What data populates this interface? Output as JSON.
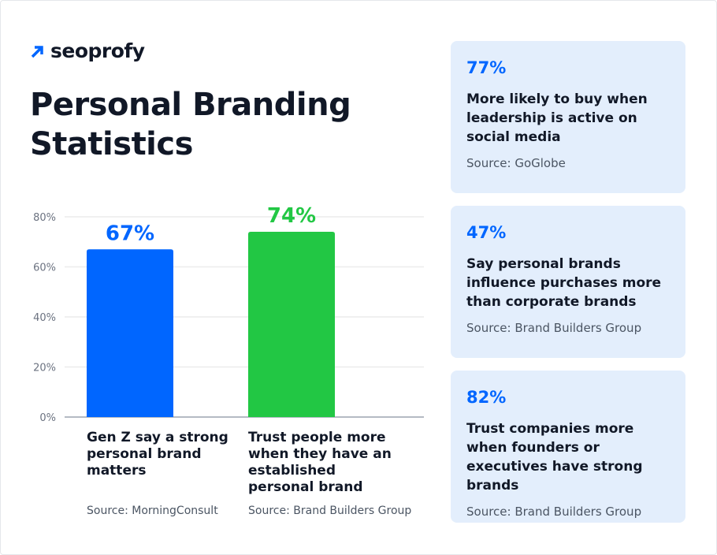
{
  "brand": {
    "name": "seoprofy",
    "accent": "#0066ff"
  },
  "title": "Personal Branding Statistics",
  "chart_data": {
    "type": "bar",
    "categories": [
      "Gen Z say a strong personal brand matters",
      "Trust people more when they have an established personal brand"
    ],
    "values": [
      67,
      74
    ],
    "data_labels": [
      "67%",
      "74%"
    ],
    "colors": [
      "#0066ff",
      "#22c744"
    ],
    "sources": [
      "Source: MorningConsult",
      "Source: Brand Builders Group"
    ],
    "yticks": [
      "0%",
      "20%",
      "40%",
      "60%",
      "80%"
    ],
    "ytick_values": [
      0,
      20,
      40,
      60,
      80
    ],
    "ylim": [
      0,
      80
    ],
    "grid": true
  },
  "cards": [
    {
      "pct": "77%",
      "desc": "More likely to buy when leadership is active on social media",
      "source": "Source: GoGlobe"
    },
    {
      "pct": "47%",
      "desc": "Say personal brands influence purchases more than corporate brands",
      "source": "Source: Brand Builders Group"
    },
    {
      "pct": "82%",
      "desc": "Trust companies more when founders or executives have strong brands",
      "source": "Source: Brand Builders Group"
    }
  ]
}
